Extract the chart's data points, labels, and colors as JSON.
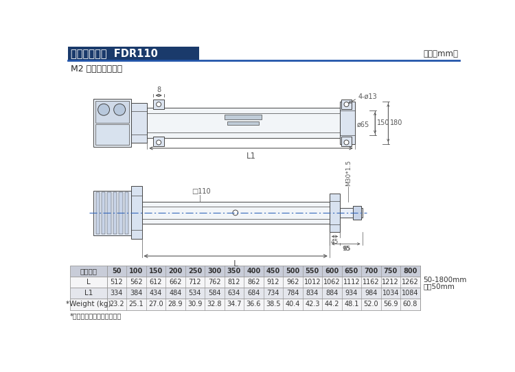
{
  "title_text": "直线式外形图  FDR110",
  "unit_text": "单位（mm）",
  "subtitle_text": "M2 底板式安装方式",
  "note_text": "*重量不包含电机自身重量。",
  "table_header": [
    "有效行程",
    "50",
    "100",
    "150",
    "200",
    "250",
    "300",
    "350",
    "400",
    "450",
    "500",
    "550",
    "600",
    "650",
    "700",
    "750",
    "800"
  ],
  "table_row1_label": "L",
  "table_row1": [
    "512",
    "562",
    "612",
    "662",
    "712",
    "762",
    "812",
    "862",
    "912",
    "962",
    "1012",
    "1062",
    "1112",
    "1162",
    "1212",
    "1262"
  ],
  "table_row1_note": "50-1800mm",
  "table_row1_note2": "间隔50mm",
  "table_row2_label": "L1",
  "table_row2": [
    "334",
    "384",
    "434",
    "484",
    "534",
    "584",
    "634",
    "684",
    "734",
    "784",
    "834",
    "884",
    "934",
    "984",
    "1034",
    "1084"
  ],
  "table_row3_label": "*Weight (kg)",
  "table_row3": [
    "23.2",
    "25.1",
    "27.0",
    "28.9",
    "30.9",
    "32.8",
    "34.7",
    "36.6",
    "38.5",
    "40.4",
    "42.3",
    "44.2",
    "48.1",
    "52.0",
    "56.9",
    "60.8"
  ],
  "header_bg": "#c8ccd8",
  "row_bg_odd": "#f5f5f7",
  "row_bg_even": "#e4e6ec",
  "border_color": "#999999",
  "title_bar_color": "#1a3a6b",
  "title_text_color": "#ffffff",
  "line_color": "#444444",
  "bg_color": "#ffffff",
  "blue_line_color": "#2255aa",
  "dim_line_color": "#555555"
}
